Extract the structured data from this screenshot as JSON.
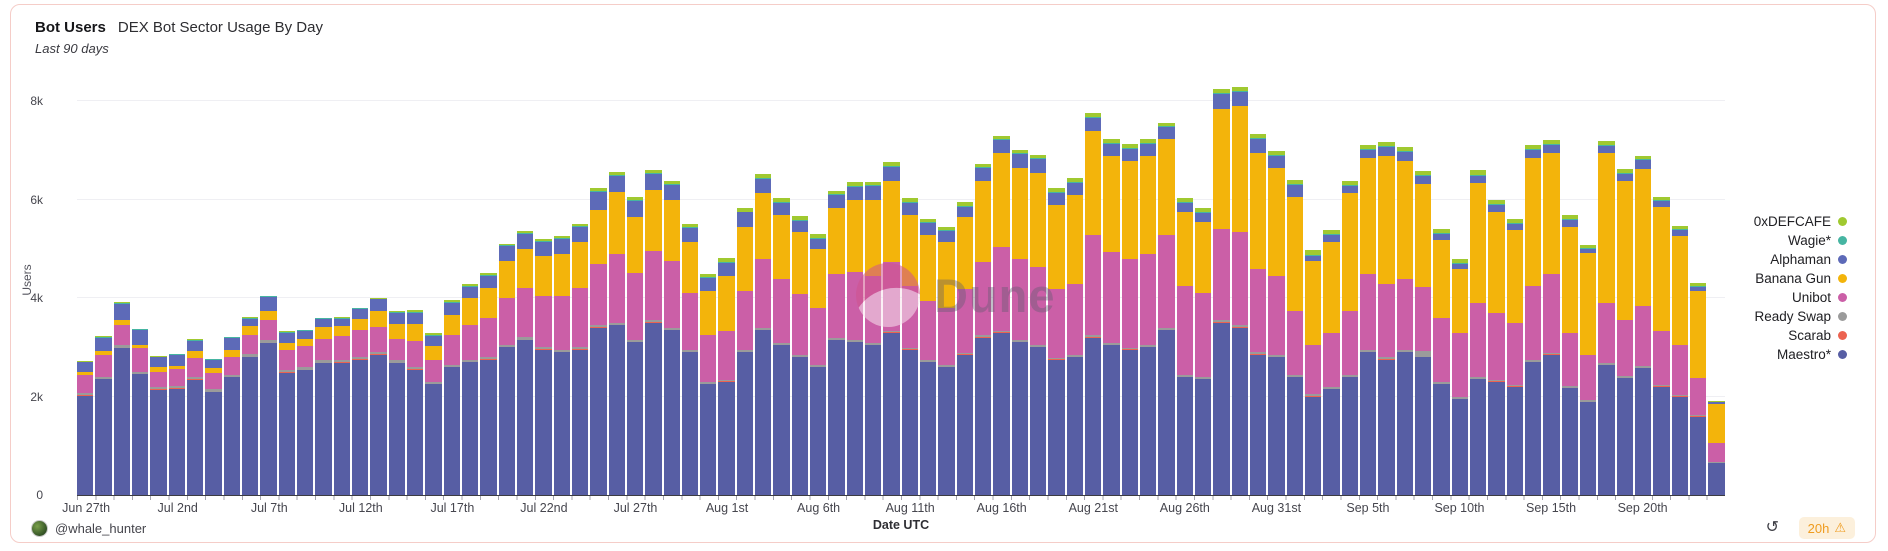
{
  "panel": {
    "title_bold": "Bot Users",
    "title_rest": "DEX Bot Sector Usage By Day",
    "subtitle": "Last 90 days"
  },
  "watermark": {
    "text": "Dune"
  },
  "footer": {
    "author_handle": "@whale_hunter",
    "refresh_glyph": "↺",
    "age_badge": {
      "text": "20h",
      "warning_glyph": "⚠"
    }
  },
  "chart_data": {
    "type": "bar",
    "stacked": true,
    "title": "Bot Users — DEX Bot Sector Usage By Day",
    "subtitle": "Last 90 days",
    "xlabel": "Date UTC",
    "ylabel": "Users",
    "ylim": [
      0,
      8740
    ],
    "grid": "horizontal",
    "legend_position": "right",
    "yticks": [
      {
        "value": 0,
        "label": "0"
      },
      {
        "value": 2000,
        "label": "2k"
      },
      {
        "value": 4000,
        "label": "4k"
      },
      {
        "value": 6000,
        "label": "6k"
      },
      {
        "value": 8000,
        "label": "8k"
      }
    ],
    "x_ticks": [
      {
        "i": 0,
        "label": "Jun 27th"
      },
      {
        "i": 5,
        "label": "Jul 2nd"
      },
      {
        "i": 10,
        "label": "Jul 7th"
      },
      {
        "i": 15,
        "label": "Jul 12th"
      },
      {
        "i": 20,
        "label": "Jul 17th"
      },
      {
        "i": 25,
        "label": "Jul 22nd"
      },
      {
        "i": 30,
        "label": "Jul 27th"
      },
      {
        "i": 35,
        "label": "Aug 1st"
      },
      {
        "i": 40,
        "label": "Aug 6th"
      },
      {
        "i": 45,
        "label": "Aug 11th"
      },
      {
        "i": 50,
        "label": "Aug 16th"
      },
      {
        "i": 55,
        "label": "Aug 21st"
      },
      {
        "i": 60,
        "label": "Aug 26th"
      },
      {
        "i": 65,
        "label": "Aug 31st"
      },
      {
        "i": 70,
        "label": "Sep 5th"
      },
      {
        "i": 75,
        "label": "Sep 10th"
      },
      {
        "i": 80,
        "label": "Sep 15th"
      },
      {
        "i": 85,
        "label": "Sep 20th"
      }
    ],
    "dates": [
      "Jun 27",
      "Jun 28",
      "Jun 29",
      "Jun 30",
      "Jul 1",
      "Jul 2",
      "Jul 3",
      "Jul 4",
      "Jul 5",
      "Jul 6",
      "Jul 7",
      "Jul 8",
      "Jul 9",
      "Jul 10",
      "Jul 11",
      "Jul 12",
      "Jul 13",
      "Jul 14",
      "Jul 15",
      "Jul 16",
      "Jul 17",
      "Jul 18",
      "Jul 19",
      "Jul 20",
      "Jul 21",
      "Jul 22",
      "Jul 23",
      "Jul 24",
      "Jul 25",
      "Jul 26",
      "Jul 27",
      "Jul 28",
      "Jul 29",
      "Jul 30",
      "Jul 31",
      "Aug 1",
      "Aug 2",
      "Aug 3",
      "Aug 4",
      "Aug 5",
      "Aug 6",
      "Aug 7",
      "Aug 8",
      "Aug 9",
      "Aug 10",
      "Aug 11",
      "Aug 12",
      "Aug 13",
      "Aug 14",
      "Aug 15",
      "Aug 16",
      "Aug 17",
      "Aug 18",
      "Aug 19",
      "Aug 20",
      "Aug 21",
      "Aug 22",
      "Aug 23",
      "Aug 24",
      "Aug 25",
      "Aug 26",
      "Aug 27",
      "Aug 28",
      "Aug 29",
      "Aug 30",
      "Aug 31",
      "Sep 1",
      "Sep 2",
      "Sep 3",
      "Sep 4",
      "Sep 5",
      "Sep 6",
      "Sep 7",
      "Sep 8",
      "Sep 9",
      "Sep 10",
      "Sep 11",
      "Sep 12",
      "Sep 13",
      "Sep 14",
      "Sep 15",
      "Sep 16",
      "Sep 17",
      "Sep 18",
      "Sep 19",
      "Sep 20",
      "Sep 21",
      "Sep 22",
      "Sep 23",
      "Sep 24"
    ],
    "legend": [
      {
        "label": "0xDEFCAFE",
        "color": "#a0c930"
      },
      {
        "label": "Wagie*",
        "color": "#46b5a2"
      },
      {
        "label": "Alphaman",
        "color": "#5d6ab8"
      },
      {
        "label": "Banana Gun",
        "color": "#f3b40b"
      },
      {
        "label": "Unibot",
        "color": "#cb5fa7"
      },
      {
        "label": "Ready Swap",
        "color": "#9b9b9b"
      },
      {
        "label": "Scarab",
        "color": "#ec6350"
      },
      {
        "label": "Maestro*",
        "color": "#575ea4"
      }
    ],
    "series": [
      {
        "name": "Maestro*",
        "color": "#575ea4",
        "values": [
          2020,
          2350,
          2990,
          2450,
          2140,
          2160,
          2340,
          2090,
          2390,
          2800,
          3090,
          2490,
          2540,
          2680,
          2690,
          2750,
          2850,
          2680,
          2550,
          2250,
          2600,
          2700,
          2750,
          3000,
          3150,
          2950,
          2900,
          2950,
          3400,
          3450,
          3100,
          3500,
          3350,
          2900,
          2250,
          2300,
          2900,
          3350,
          3050,
          2800,
          2600,
          3150,
          3100,
          3050,
          3300,
          2950,
          2700,
          2600,
          2850,
          3200,
          3300,
          3100,
          3000,
          2750,
          2800,
          3200,
          3050,
          2950,
          3000,
          3350,
          2400,
          2350,
          3500,
          3400,
          2850,
          2800,
          2400,
          2000,
          2150,
          2400,
          2900,
          2750,
          2900,
          2800,
          2250,
          1950,
          2350,
          2300,
          2200,
          2700,
          2850,
          2170,
          1890,
          2640,
          2380,
          2580,
          2200,
          2000,
          1590,
          650
        ]
      },
      {
        "name": "Scarab",
        "color": "#ec6350",
        "values": [
          8,
          8,
          8,
          8,
          8,
          8,
          8,
          8,
          8,
          8,
          8,
          8,
          8,
          8,
          8,
          8,
          8,
          8,
          8,
          8,
          8,
          8,
          8,
          8,
          8,
          8,
          8,
          8,
          8,
          8,
          8,
          8,
          8,
          8,
          8,
          8,
          8,
          8,
          8,
          8,
          8,
          8,
          8,
          8,
          8,
          8,
          8,
          8,
          8,
          8,
          8,
          8,
          8,
          8,
          8,
          8,
          8,
          8,
          8,
          8,
          8,
          8,
          8,
          8,
          8,
          8,
          8,
          8,
          8,
          8,
          8,
          8,
          8,
          8,
          8,
          8,
          8,
          8,
          8,
          8,
          8,
          8,
          8,
          8,
          8,
          8,
          8,
          8,
          8,
          8
        ]
      },
      {
        "name": "Ready Swap",
        "color": "#9b9b9b",
        "values": [
          50,
          50,
          50,
          50,
          50,
          50,
          50,
          50,
          50,
          50,
          50,
          50,
          50,
          50,
          50,
          50,
          50,
          50,
          45,
          45,
          45,
          45,
          45,
          45,
          45,
          45,
          45,
          45,
          45,
          45,
          45,
          45,
          45,
          45,
          45,
          35,
          35,
          35,
          35,
          35,
          35,
          35,
          35,
          35,
          35,
          35,
          35,
          35,
          35,
          35,
          35,
          35,
          35,
          35,
          35,
          35,
          35,
          35,
          35,
          35,
          40,
          40,
          40,
          40,
          40,
          40,
          40,
          40,
          40,
          40,
          40,
          40,
          40,
          120,
          35,
          35,
          35,
          35,
          35,
          35,
          35,
          35,
          35,
          35,
          35,
          35,
          35,
          35,
          35,
          20
        ]
      },
      {
        "name": "Unibot",
        "color": "#cb5fa7",
        "values": [
          360,
          430,
          400,
          480,
          300,
          340,
          390,
          340,
          350,
          390,
          400,
          400,
          440,
          440,
          490,
          540,
          500,
          430,
          520,
          450,
          600,
          700,
          800,
          950,
          1000,
          1050,
          1100,
          1200,
          1250,
          1400,
          1350,
          1400,
          1350,
          1150,
          950,
          1000,
          1200,
          1400,
          1300,
          1250,
          1150,
          1300,
          1400,
          1350,
          1400,
          1250,
          1200,
          1150,
          1300,
          1500,
          1700,
          1650,
          1600,
          1400,
          1450,
          2050,
          1850,
          1800,
          1850,
          1900,
          1800,
          1700,
          1850,
          1900,
          1700,
          1600,
          1300,
          1000,
          1100,
          1300,
          1550,
          1500,
          1450,
          1300,
          1300,
          1300,
          1500,
          1350,
          1250,
          1500,
          1600,
          1080,
          920,
          1220,
          1140,
          1220,
          1090,
          1000,
          750,
          370
        ]
      },
      {
        "name": "Banana Gun",
        "color": "#f3b40b",
        "values": [
          60,
          80,
          110,
          70,
          100,
          60,
          140,
          100,
          150,
          180,
          190,
          150,
          140,
          240,
          200,
          240,
          330,
          300,
          350,
          280,
          400,
          550,
          600,
          750,
          800,
          800,
          850,
          950,
          1100,
          1250,
          1150,
          1250,
          1250,
          1050,
          900,
          1100,
          1300,
          1350,
          1300,
          1250,
          1200,
          1350,
          1450,
          1550,
          1650,
          1450,
          1350,
          1350,
          1450,
          1650,
          1900,
          1850,
          1900,
          1700,
          1800,
          2100,
          1950,
          2000,
          2000,
          1950,
          1500,
          1450,
          2450,
          2550,
          2350,
          2200,
          2300,
          1700,
          1850,
          2400,
          2350,
          2600,
          2400,
          2100,
          1600,
          1300,
          2450,
          2050,
          1900,
          2600,
          2450,
          2150,
          2060,
          3050,
          2820,
          2790,
          2530,
          2220,
          1760,
          810
        ]
      },
      {
        "name": "Alphaman",
        "color": "#5d6ab8",
        "values": [
          200,
          280,
          330,
          300,
          200,
          230,
          210,
          160,
          240,
          160,
          290,
          200,
          160,
          160,
          150,
          190,
          240,
          240,
          230,
          200,
          250,
          230,
          250,
          300,
          300,
          300,
          300,
          300,
          350,
          330,
          330,
          320,
          300,
          280,
          250,
          280,
          300,
          280,
          250,
          230,
          220,
          250,
          270,
          280,
          280,
          250,
          230,
          220,
          220,
          250,
          270,
          280,
          280,
          250,
          250,
          280,
          250,
          250,
          250,
          230,
          180,
          180,
          300,
          300,
          280,
          250,
          250,
          120,
          130,
          140,
          160,
          170,
          170,
          150,
          120,
          100,
          150,
          150,
          120,
          170,
          170,
          140,
          90,
          150,
          150,
          170,
          120,
          125,
          80,
          30
        ]
      },
      {
        "name": "Wagie*",
        "color": "#46b5a2",
        "values": [
          15,
          15,
          15,
          15,
          15,
          15,
          15,
          15,
          15,
          15,
          15,
          15,
          15,
          15,
          15,
          15,
          15,
          15,
          15,
          15,
          20,
          20,
          20,
          20,
          20,
          20,
          20,
          20,
          20,
          20,
          20,
          20,
          20,
          20,
          20,
          20,
          20,
          20,
          20,
          20,
          20,
          20,
          20,
          20,
          20,
          20,
          20,
          20,
          20,
          20,
          20,
          20,
          20,
          20,
          20,
          20,
          20,
          20,
          20,
          20,
          20,
          20,
          20,
          20,
          20,
          20,
          20,
          20,
          20,
          20,
          20,
          20,
          20,
          20,
          20,
          20,
          20,
          20,
          20,
          20,
          20,
          20,
          20,
          20,
          20,
          20,
          20,
          20,
          20,
          8
        ]
      },
      {
        "name": "0xDEFCAFE",
        "color": "#a0c930",
        "values": [
          12,
          12,
          12,
          12,
          12,
          12,
          12,
          12,
          12,
          12,
          12,
          12,
          12,
          12,
          12,
          12,
          12,
          12,
          40,
          40,
          40,
          40,
          40,
          40,
          40,
          40,
          40,
          40,
          65,
          65,
          65,
          65,
          65,
          65,
          65,
          75,
          75,
          75,
          75,
          75,
          75,
          75,
          75,
          75,
          75,
          75,
          75,
          75,
          75,
          75,
          75,
          75,
          75,
          75,
          75,
          75,
          75,
          75,
          75,
          75,
          85,
          85,
          85,
          85,
          85,
          85,
          85,
          85,
          85,
          85,
          85,
          85,
          85,
          85,
          85,
          85,
          85,
          85,
          85,
          85,
          85,
          85,
          65,
          65,
          65,
          65,
          65,
          65,
          65,
          18
        ]
      }
    ]
  }
}
